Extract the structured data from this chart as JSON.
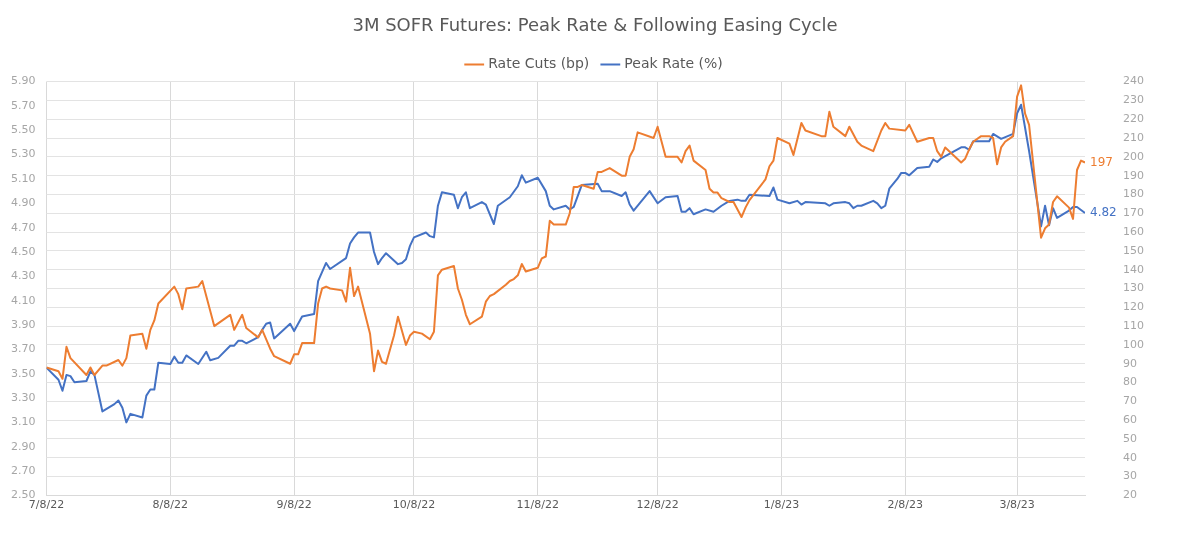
{
  "chart_data": {
    "type": "line",
    "title": "3M SOFR Futures: Peak Rate & Following Easing Cycle",
    "legend": "top",
    "grid": true,
    "marker": "none",
    "line_style": "solid",
    "xlim": [
      "2022-07-08",
      "2023-03-25"
    ],
    "xticks": [
      {
        "value": "2022-07-08",
        "label": "7/8/22"
      },
      {
        "value": "2022-08-08",
        "label": "8/8/22"
      },
      {
        "value": "2022-09-08",
        "label": "9/8/22"
      },
      {
        "value": "2022-10-08",
        "label": "10/8/22"
      },
      {
        "value": "2022-11-08",
        "label": "11/8/22"
      },
      {
        "value": "2022-12-08",
        "label": "12/8/22"
      },
      {
        "value": "2023-01-08",
        "label": "1/8/23"
      },
      {
        "value": "2023-02-08",
        "label": "2/8/23"
      },
      {
        "value": "2023-03-08",
        "label": "3/8/23"
      }
    ],
    "ylim": [
      2.5,
      5.9
    ],
    "yticks": [
      {
        "value": 2.5,
        "label": "2.50"
      },
      {
        "value": 2.7,
        "label": "2.70"
      },
      {
        "value": 2.9,
        "label": "2.90"
      },
      {
        "value": 3.1,
        "label": "3.10"
      },
      {
        "value": 3.3,
        "label": "3.30"
      },
      {
        "value": 3.5,
        "label": "3.50"
      },
      {
        "value": 3.7,
        "label": "3.70"
      },
      {
        "value": 3.9,
        "label": "3.90"
      },
      {
        "value": 4.1,
        "label": "4.10"
      },
      {
        "value": 4.3,
        "label": "4.30"
      },
      {
        "value": 4.5,
        "label": "4.50"
      },
      {
        "value": 4.7,
        "label": "4.70"
      },
      {
        "value": 4.9,
        "label": "4.90"
      },
      {
        "value": 5.1,
        "label": "5.10"
      },
      {
        "value": 5.3,
        "label": "5.30"
      },
      {
        "value": 5.5,
        "label": "5.50"
      },
      {
        "value": 5.7,
        "label": "5.70"
      },
      {
        "value": 5.9,
        "label": "5.90"
      }
    ],
    "y2lim": [
      20,
      240
    ],
    "y2ticks": [
      20,
      30,
      40,
      50,
      60,
      70,
      80,
      90,
      100,
      110,
      120,
      130,
      140,
      150,
      160,
      170,
      180,
      190,
      200,
      210,
      220,
      230,
      240
    ],
    "series": [
      {
        "name": "Rate Cuts (bp)",
        "color": "#ed7d31",
        "axis": "y2",
        "x": [
          "2022-07-08",
          "2022-07-11",
          "2022-07-12",
          "2022-07-13",
          "2022-07-14",
          "2022-07-18",
          "2022-07-19",
          "2022-07-20",
          "2022-07-22",
          "2022-07-23",
          "2022-07-26",
          "2022-07-27",
          "2022-07-28",
          "2022-07-29",
          "2022-08-01",
          "2022-08-02",
          "2022-08-03",
          "2022-08-04",
          "2022-08-05",
          "2022-08-09",
          "2022-08-10",
          "2022-08-11",
          "2022-08-12",
          "2022-08-15",
          "2022-08-16",
          "2022-08-19",
          "2022-08-23",
          "2022-08-24",
          "2022-08-26",
          "2022-08-27",
          "2022-08-30",
          "2022-08-31",
          "2022-09-02",
          "2022-09-03",
          "2022-09-07",
          "2022-09-08",
          "2022-09-09",
          "2022-09-10",
          "2022-09-13",
          "2022-09-14",
          "2022-09-15",
          "2022-09-16",
          "2022-09-17",
          "2022-09-20",
          "2022-09-21",
          "2022-09-22",
          "2022-09-23",
          "2022-09-24",
          "2022-09-27",
          "2022-09-28",
          "2022-09-29",
          "2022-09-30",
          "2022-10-01",
          "2022-10-03",
          "2022-10-04",
          "2022-10-06",
          "2022-10-07",
          "2022-10-08",
          "2022-10-10",
          "2022-10-12",
          "2022-10-13",
          "2022-10-14",
          "2022-10-15",
          "2022-10-18",
          "2022-10-19",
          "2022-10-20",
          "2022-10-21",
          "2022-10-22",
          "2022-10-25",
          "2022-10-26",
          "2022-10-27",
          "2022-10-28",
          "2022-10-31",
          "2022-11-01",
          "2022-11-02",
          "2022-11-03",
          "2022-11-04",
          "2022-11-05",
          "2022-11-08",
          "2022-11-09",
          "2022-11-10",
          "2022-11-11",
          "2022-11-12",
          "2022-11-15",
          "2022-11-16",
          "2022-11-17",
          "2022-11-18",
          "2022-11-19",
          "2022-11-22",
          "2022-11-23",
          "2022-11-24",
          "2022-11-26",
          "2022-11-29",
          "2022-11-30",
          "2022-12-01",
          "2022-12-02",
          "2022-12-03",
          "2022-12-07",
          "2022-12-08",
          "2022-12-10",
          "2022-12-13",
          "2022-12-14",
          "2022-12-15",
          "2022-12-16",
          "2022-12-17",
          "2022-12-20",
          "2022-12-21",
          "2022-12-22",
          "2022-12-23",
          "2022-12-24",
          "2022-12-26",
          "2022-12-27",
          "2022-12-29",
          "2022-12-30",
          "2022-12-31",
          "2023-01-04",
          "2023-01-05",
          "2023-01-06",
          "2023-01-07",
          "2023-01-10",
          "2023-01-11",
          "2023-01-13",
          "2023-01-14",
          "2023-01-18",
          "2023-01-19",
          "2023-01-20",
          "2023-01-21",
          "2023-01-24",
          "2023-01-25",
          "2023-01-27",
          "2023-01-28",
          "2023-01-31",
          "2023-02-02",
          "2023-02-03",
          "2023-02-04",
          "2023-02-08",
          "2023-02-09",
          "2023-02-11",
          "2023-02-14",
          "2023-02-15",
          "2023-02-16",
          "2023-02-17",
          "2023-02-18",
          "2023-02-22",
          "2023-02-23",
          "2023-02-24",
          "2023-02-25",
          "2023-02-27",
          "2023-03-01",
          "2023-03-02",
          "2023-03-03",
          "2023-03-04",
          "2023-03-05",
          "2023-03-07",
          "2023-03-08",
          "2023-03-09",
          "2023-03-10",
          "2023-03-11",
          "2023-03-14",
          "2023-03-15",
          "2023-03-16",
          "2023-03-17",
          "2023-03-18",
          "2023-03-21",
          "2023-03-22",
          "2023-03-23",
          "2023-03-24",
          "2023-03-25"
        ],
        "values": [
          88,
          86,
          82,
          99,
          93,
          84,
          88,
          84,
          89,
          89,
          92,
          89,
          93,
          105,
          106,
          98,
          108,
          113,
          122,
          131,
          127,
          119,
          130,
          131,
          134,
          110,
          116,
          108,
          116,
          109,
          104,
          108,
          98,
          94,
          90,
          95,
          95,
          101,
          101,
          122,
          130,
          131,
          130,
          129,
          123,
          141,
          126,
          131,
          106,
          86,
          97,
          91,
          90,
          105,
          115,
          100,
          105,
          107,
          106,
          103,
          107,
          137,
          140,
          142,
          130,
          124,
          116,
          111,
          115,
          123,
          126,
          127,
          132,
          134,
          135,
          137,
          143,
          139,
          141,
          146,
          147,
          166,
          164,
          164,
          170,
          184,
          184,
          185,
          183,
          192,
          192,
          194,
          190,
          190,
          200,
          204,
          213,
          210,
          216,
          200,
          200,
          197,
          203,
          206,
          198,
          193,
          183,
          181,
          181,
          178,
          176,
          176,
          168,
          173,
          177,
          188,
          195,
          198,
          210,
          207,
          201,
          218,
          214,
          211,
          211,
          224,
          216,
          211,
          216,
          208,
          206,
          203,
          214,
          218,
          215,
          214,
          217,
          208,
          210,
          210,
          203,
          200,
          205,
          197,
          199,
          204,
          208,
          211,
          211,
          210,
          196,
          205,
          208,
          211,
          232,
          238,
          223,
          217,
          157,
          162,
          164,
          176,
          179,
          173,
          167,
          193,
          198,
          197
        ],
        "value_labels": [
          null,
          null,
          null,
          null,
          null,
          null,
          null,
          null,
          null,
          null,
          null,
          null,
          null,
          null,
          null,
          null,
          null,
          null,
          null,
          null,
          null,
          null,
          null,
          null,
          null,
          null,
          null,
          null,
          null,
          null,
          null,
          null,
          null,
          null,
          null,
          null,
          null,
          null,
          null,
          null,
          null,
          null,
          null,
          null,
          null,
          null,
          null,
          null,
          null,
          null,
          null,
          null,
          null,
          null,
          null,
          null,
          null,
          null,
          null,
          null,
          null,
          null,
          null,
          null,
          null,
          null,
          null,
          null,
          null,
          null,
          null,
          null,
          null,
          null,
          null,
          null,
          null,
          null,
          null,
          null,
          null,
          null,
          null,
          null,
          null,
          null,
          null,
          null,
          null,
          null,
          null,
          null,
          null,
          null,
          null,
          null,
          null,
          null,
          null,
          null,
          null,
          null,
          null,
          null,
          null,
          null,
          null,
          null,
          null,
          null,
          null,
          null,
          null,
          null,
          null,
          null,
          null,
          null,
          null,
          null,
          null,
          null,
          null,
          null,
          null,
          null,
          null,
          null,
          null,
          null,
          null,
          null,
          null,
          null,
          null,
          null,
          null,
          null,
          null,
          null,
          null,
          null,
          null,
          null,
          null,
          null,
          null,
          null,
          null,
          null,
          null,
          null,
          null,
          null,
          null,
          null,
          null,
          null,
          null,
          null,
          null,
          null,
          null,
          null,
          null,
          null,
          null,
          "197"
        ]
      },
      {
        "name": "Peak Rate (%)",
        "color": "#4472c4",
        "axis": "y",
        "x": [
          "2022-07-08",
          "2022-07-11",
          "2022-07-12",
          "2022-07-13",
          "2022-07-14",
          "2022-07-15",
          "2022-07-18",
          "2022-07-19",
          "2022-07-20",
          "2022-07-22",
          "2022-07-25",
          "2022-07-26",
          "2022-07-27",
          "2022-07-28",
          "2022-07-29",
          "2022-08-01",
          "2022-08-02",
          "2022-08-03",
          "2022-08-04",
          "2022-08-05",
          "2022-08-08",
          "2022-08-09",
          "2022-08-10",
          "2022-08-11",
          "2022-08-12",
          "2022-08-15",
          "2022-08-17",
          "2022-08-18",
          "2022-08-20",
          "2022-08-23",
          "2022-08-24",
          "2022-08-25",
          "2022-08-26",
          "2022-08-27",
          "2022-08-30",
          "2022-08-31",
          "2022-09-01",
          "2022-09-02",
          "2022-09-03",
          "2022-09-07",
          "2022-09-08",
          "2022-09-10",
          "2022-09-13",
          "2022-09-14",
          "2022-09-16",
          "2022-09-17",
          "2022-09-21",
          "2022-09-22",
          "2022-09-23",
          "2022-09-24",
          "2022-09-27",
          "2022-09-28",
          "2022-09-29",
          "2022-09-30",
          "2022-10-01",
          "2022-10-04",
          "2022-10-05",
          "2022-10-06",
          "2022-10-07",
          "2022-10-08",
          "2022-10-11",
          "2022-10-12",
          "2022-10-13",
          "2022-10-14",
          "2022-10-15",
          "2022-10-18",
          "2022-10-19",
          "2022-10-20",
          "2022-10-21",
          "2022-10-22",
          "2022-10-25",
          "2022-10-26",
          "2022-10-28",
          "2022-10-29",
          "2022-11-01",
          "2022-11-03",
          "2022-11-04",
          "2022-11-05",
          "2022-11-08",
          "2022-11-10",
          "2022-11-11",
          "2022-11-12",
          "2022-11-15",
          "2022-11-16",
          "2022-11-17",
          "2022-11-19",
          "2022-11-23",
          "2022-11-24",
          "2022-11-26",
          "2022-11-29",
          "2022-11-30",
          "2022-12-01",
          "2022-12-02",
          "2022-12-06",
          "2022-12-08",
          "2022-12-10",
          "2022-12-13",
          "2022-12-14",
          "2022-12-15",
          "2022-12-16",
          "2022-12-17",
          "2022-12-20",
          "2022-12-22",
          "2022-12-24",
          "2022-12-26",
          "2022-12-28",
          "2022-12-29",
          "2022-12-30",
          "2022-12-31",
          "2023-01-05",
          "2023-01-06",
          "2023-01-07",
          "2023-01-10",
          "2023-01-12",
          "2023-01-13",
          "2023-01-14",
          "2023-01-19",
          "2023-01-20",
          "2023-01-21",
          "2023-01-24",
          "2023-01-25",
          "2023-01-26",
          "2023-01-27",
          "2023-01-28",
          "2023-01-31",
          "2023-02-01",
          "2023-02-02",
          "2023-02-03",
          "2023-02-04",
          "2023-02-06",
          "2023-02-07",
          "2023-02-08",
          "2023-02-09",
          "2023-02-11",
          "2023-02-14",
          "2023-02-15",
          "2023-02-16",
          "2023-02-17",
          "2023-02-22",
          "2023-02-23",
          "2023-02-24",
          "2023-02-25",
          "2023-02-27",
          "2023-03-01",
          "2023-03-02",
          "2023-03-04",
          "2023-03-07",
          "2023-03-08",
          "2023-03-09",
          "2023-03-11",
          "2023-03-14",
          "2023-03-15",
          "2023-03-16",
          "2023-03-17",
          "2023-03-18",
          "2023-03-21",
          "2023-03-22",
          "2023-03-23",
          "2023-03-25"
        ],
        "values": [
          3.55,
          3.45,
          3.36,
          3.49,
          3.48,
          3.43,
          3.44,
          3.52,
          3.49,
          3.19,
          3.25,
          3.28,
          3.22,
          3.1,
          3.17,
          3.14,
          3.32,
          3.37,
          3.37,
          3.59,
          3.58,
          3.64,
          3.59,
          3.59,
          3.65,
          3.58,
          3.68,
          3.61,
          3.63,
          3.73,
          3.73,
          3.77,
          3.77,
          3.75,
          3.8,
          3.86,
          3.91,
          3.92,
          3.79,
          3.91,
          3.85,
          3.97,
          3.99,
          4.26,
          4.41,
          4.36,
          4.45,
          4.57,
          4.62,
          4.66,
          4.66,
          4.5,
          4.4,
          4.45,
          4.49,
          4.4,
          4.41,
          4.44,
          4.55,
          4.62,
          4.66,
          4.63,
          4.62,
          4.88,
          4.99,
          4.97,
          4.86,
          4.95,
          4.99,
          4.86,
          4.91,
          4.89,
          4.73,
          4.88,
          4.95,
          5.04,
          5.13,
          5.07,
          5.11,
          5.0,
          4.88,
          4.85,
          4.88,
          4.85,
          4.87,
          5.05,
          5.06,
          5.0,
          5.0,
          4.96,
          4.99,
          4.89,
          4.84,
          5.0,
          4.9,
          4.95,
          4.96,
          4.83,
          4.83,
          4.86,
          4.81,
          4.85,
          4.83,
          4.88,
          4.92,
          4.93,
          4.92,
          4.92,
          4.97,
          4.96,
          5.03,
          4.93,
          4.9,
          4.92,
          4.89,
          4.91,
          4.9,
          4.88,
          4.9,
          4.91,
          4.9,
          4.86,
          4.88,
          4.88,
          4.92,
          4.9,
          4.86,
          4.88,
          5.02,
          5.1,
          5.15,
          5.15,
          5.13,
          5.19,
          5.2,
          5.26,
          5.24,
          5.27,
          5.36,
          5.36,
          5.34,
          5.41,
          5.41,
          5.41,
          5.47,
          5.43,
          5.47,
          5.64,
          5.71,
          5.33,
          4.71,
          4.88,
          4.72,
          4.86,
          4.78,
          4.84,
          4.87,
          4.87,
          4.82
        ],
        "value_labels": [
          null,
          null,
          null,
          null,
          null,
          null,
          null,
          null,
          null,
          null,
          null,
          null,
          null,
          null,
          null,
          null,
          null,
          null,
          null,
          null,
          null,
          null,
          null,
          null,
          null,
          null,
          null,
          null,
          null,
          null,
          null,
          null,
          null,
          null,
          null,
          null,
          null,
          null,
          null,
          null,
          null,
          null,
          null,
          null,
          null,
          null,
          null,
          null,
          null,
          null,
          null,
          null,
          null,
          null,
          null,
          null,
          null,
          null,
          null,
          null,
          null,
          null,
          null,
          null,
          null,
          null,
          null,
          null,
          null,
          null,
          null,
          null,
          null,
          null,
          null,
          null,
          null,
          null,
          null,
          null,
          null,
          null,
          null,
          null,
          null,
          null,
          null,
          null,
          null,
          null,
          null,
          null,
          null,
          null,
          null,
          null,
          null,
          null,
          null,
          null,
          null,
          null,
          null,
          null,
          null,
          null,
          null,
          null,
          null,
          null,
          null,
          null,
          null,
          null,
          null,
          null,
          null,
          null,
          null,
          null,
          null,
          null,
          null,
          null,
          null,
          null,
          null,
          null,
          null,
          null,
          null,
          null,
          null,
          null,
          null,
          null,
          null,
          null,
          null,
          null,
          null,
          null,
          null,
          null,
          null,
          null,
          null,
          null,
          null,
          null,
          null,
          null,
          null,
          null,
          null,
          null,
          null,
          null,
          "4.82"
        ]
      }
    ]
  }
}
